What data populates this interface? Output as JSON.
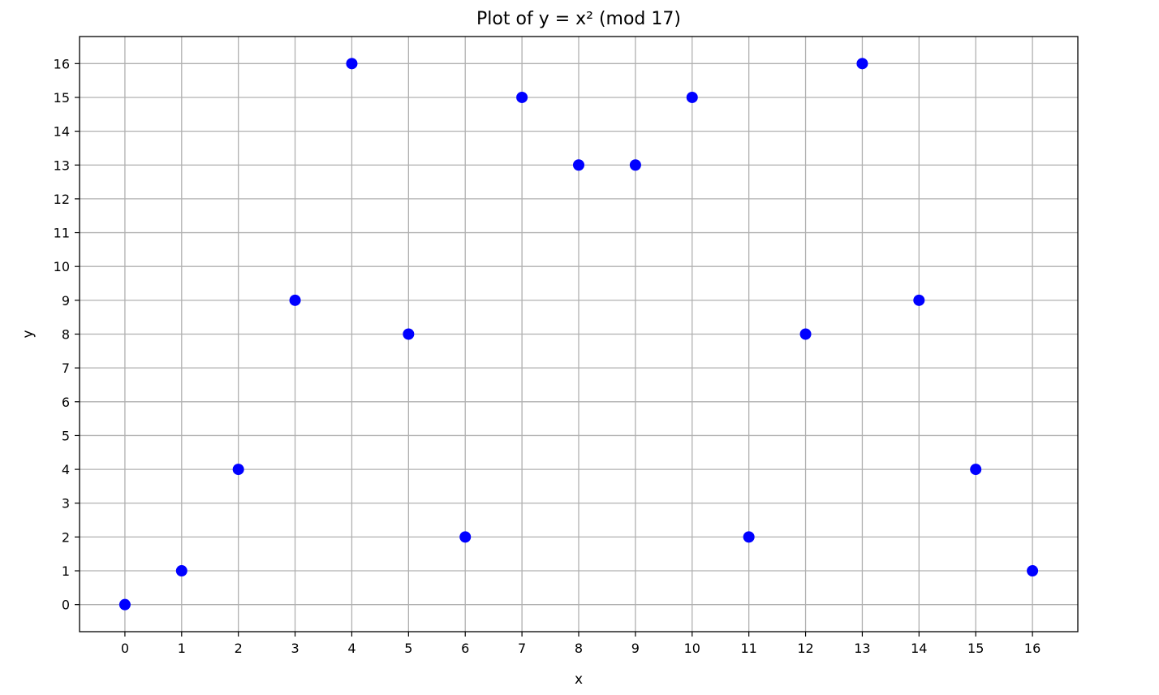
{
  "chart_data": {
    "type": "scatter",
    "title": "Plot of y = x² (mod 17)",
    "xlabel": "x",
    "ylabel": "y",
    "x": [
      0,
      1,
      2,
      3,
      4,
      5,
      6,
      7,
      8,
      9,
      10,
      11,
      12,
      13,
      14,
      15,
      16
    ],
    "series": [
      {
        "values": [
          0,
          1,
          4,
          9,
          16,
          8,
          2,
          15,
          13,
          13,
          15,
          2,
          8,
          16,
          9,
          4,
          1
        ],
        "color": "#0000ff",
        "marker": "circle"
      }
    ],
    "xticks": [
      "0",
      "1",
      "2",
      "3",
      "4",
      "5",
      "6",
      "7",
      "8",
      "9",
      "10",
      "11",
      "12",
      "13",
      "14",
      "15",
      "16"
    ],
    "yticks": [
      "0",
      "1",
      "2",
      "3",
      "4",
      "5",
      "6",
      "7",
      "8",
      "9",
      "10",
      "11",
      "12",
      "13",
      "14",
      "15",
      "16"
    ],
    "xlim": [
      -0.8,
      16.8
    ],
    "ylim": [
      -0.8,
      16.8
    ],
    "grid": true,
    "grid_color": "#b0b0b0",
    "legend": "none"
  }
}
